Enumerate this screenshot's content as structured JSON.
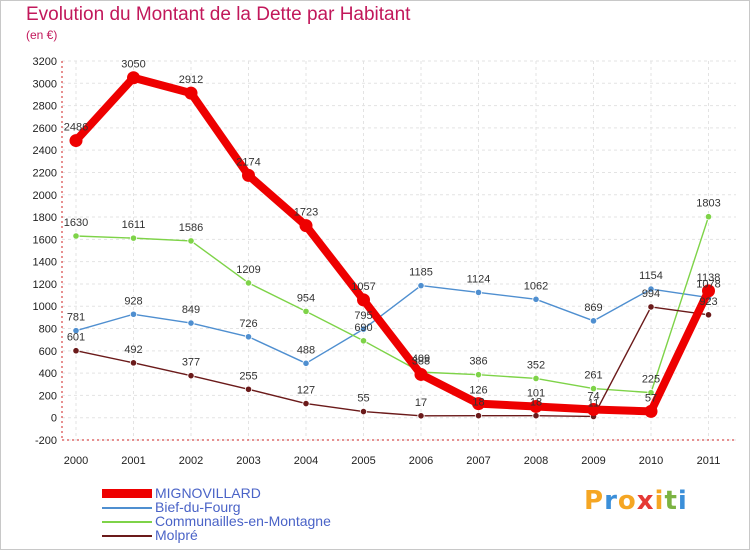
{
  "title": "Evolution du Montant de la Dette par Habitant",
  "unit": "(en €)",
  "brand": {
    "text": "Proxiti",
    "letter_colors": [
      "#f5a623",
      "#3b8fd9",
      "#f5a623",
      "#e53935",
      "#f5a623",
      "#7cb342",
      "#3b8fd9"
    ]
  },
  "chart_data": {
    "type": "line",
    "title": "Evolution du Montant de la Dette par Habitant",
    "ylabel": "(en €)",
    "xlabel": "",
    "x": [
      "2000",
      "2001",
      "2002",
      "2003",
      "2004",
      "2005",
      "2006",
      "2007",
      "2008",
      "2009",
      "2010",
      "2011"
    ],
    "ylim": [
      -200,
      3200
    ],
    "yticks": [
      -200,
      0,
      200,
      400,
      600,
      800,
      1000,
      1200,
      1400,
      1600,
      1800,
      2000,
      2200,
      2400,
      2600,
      2800,
      3000,
      3200
    ],
    "grid": true,
    "legend_position": "bottom-left",
    "series": [
      {
        "name": "MIGNOVILLARD",
        "color": "#ee0000",
        "thick": true,
        "values": [
          2486,
          3050,
          2912,
          2174,
          1723,
          1057,
          388,
          126,
          101,
          74,
          57,
          1138
        ],
        "labels": [
          "2486",
          "3050",
          "2912",
          "2174",
          "1723",
          "1057",
          "388",
          "126",
          "101",
          "74",
          "57",
          "1138"
        ]
      },
      {
        "name": "Bief-du-Fourg",
        "color": "#4f8fd0",
        "thick": false,
        "values": [
          781,
          928,
          849,
          726,
          488,
          795,
          1185,
          1124,
          1062,
          869,
          1154,
          1078
        ],
        "labels": [
          "781",
          "928",
          "849",
          "726",
          "488",
          "795",
          "1185",
          "1124",
          "1062",
          "869",
          "1154",
          "1078"
        ]
      },
      {
        "name": "Communailles-en-Montagne",
        "color": "#7ed348",
        "thick": false,
        "values": [
          1630,
          1611,
          1586,
          1209,
          954,
          690,
          409,
          386,
          352,
          261,
          225,
          1803
        ],
        "labels": [
          "1630",
          "1611",
          "1586",
          "1209",
          "954",
          "690",
          "409",
          "386",
          "352",
          "261",
          "225",
          "1803"
        ]
      },
      {
        "name": "Molpré",
        "color": "#6b1a1a",
        "thick": false,
        "values": [
          601,
          492,
          377,
          255,
          127,
          55,
          17,
          18,
          18,
          11,
          994,
          923
        ],
        "labels": [
          "601",
          "492",
          "377",
          "255",
          "127",
          "55",
          "17",
          "18",
          "18",
          "11",
          "994",
          "923"
        ]
      }
    ]
  }
}
